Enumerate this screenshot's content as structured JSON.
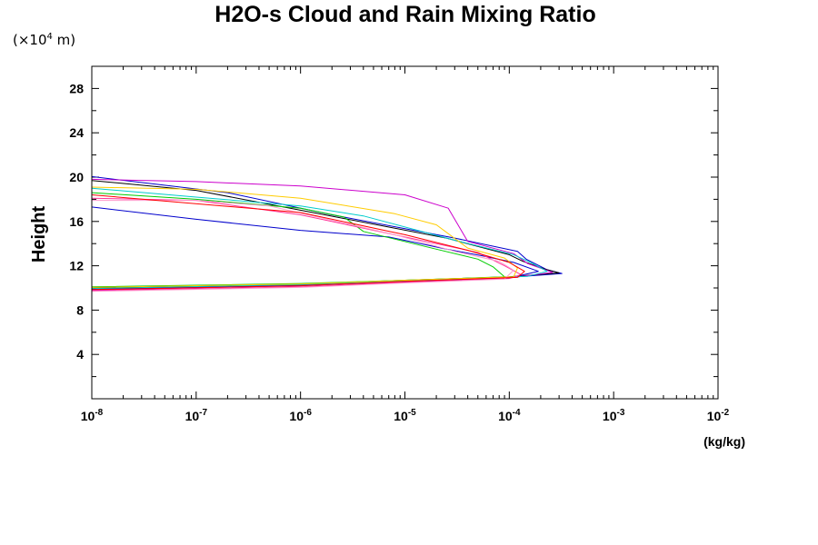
{
  "chart_data": {
    "type": "line",
    "title": "H2O-s Cloud and Rain Mixing Ratio",
    "ylabel": "Height",
    "yscale_note": {
      "prefix": "(×10",
      "exp": "4",
      "suffix": " m)"
    },
    "xunit": "(kg/kg)",
    "xscale": "log",
    "xlim": [
      1e-08,
      0.01
    ],
    "ylim": [
      0,
      30
    ],
    "x_ticks": [
      {
        "value": 1e-08,
        "base": "10",
        "exp": "-8"
      },
      {
        "value": 1e-07,
        "base": "10",
        "exp": "-7"
      },
      {
        "value": 1e-06,
        "base": "10",
        "exp": "-6"
      },
      {
        "value": 1e-05,
        "base": "10",
        "exp": "-5"
      },
      {
        "value": 0.0001,
        "base": "10",
        "exp": "-4"
      },
      {
        "value": 0.001,
        "base": "10",
        "exp": "-3"
      },
      {
        "value": 0.01,
        "base": "10",
        "exp": "-2"
      }
    ],
    "y_ticks": [
      {
        "value": 4,
        "label": "4"
      },
      {
        "value": 8,
        "label": "8"
      },
      {
        "value": 12,
        "label": "12"
      },
      {
        "value": 16,
        "label": "16"
      },
      {
        "value": 20,
        "label": "20"
      },
      {
        "value": 24,
        "label": "24"
      },
      {
        "value": 28,
        "label": "28"
      }
    ],
    "grid": false,
    "legend": "none",
    "series": [
      {
        "color": "#0000cc",
        "points": [
          [
            1e-08,
            9.9
          ],
          [
            1e-07,
            10.05
          ],
          [
            1e-06,
            10.3
          ],
          [
            1e-05,
            10.65
          ],
          [
            0.0001,
            10.95
          ],
          [
            0.00032,
            11.3
          ],
          [
            0.00023,
            11.65
          ],
          [
            0.000145,
            12.6
          ],
          [
            0.00012,
            13.3
          ],
          [
            3e-05,
            14.5
          ],
          [
            2e-06,
            16.6
          ],
          [
            2e-07,
            18.6
          ],
          [
            1e-08,
            20.05
          ]
        ]
      },
      {
        "color": "#000000",
        "points": [
          [
            1e-08,
            10.0
          ],
          [
            1e-06,
            10.35
          ],
          [
            1e-05,
            10.7
          ],
          [
            0.0001,
            11.0
          ],
          [
            0.0003,
            11.35
          ],
          [
            0.00022,
            11.7
          ],
          [
            0.000135,
            12.4
          ],
          [
            0.0001,
            13.0
          ],
          [
            2.5e-05,
            14.5
          ],
          [
            1.5e-06,
            16.7
          ],
          [
            1e-07,
            18.8
          ],
          [
            1e-08,
            19.7
          ]
        ]
      },
      {
        "color": "#cc00cc",
        "points": [
          [
            1e-08,
            9.8
          ],
          [
            1e-06,
            10.2
          ],
          [
            1e-05,
            10.55
          ],
          [
            0.0001,
            10.9
          ],
          [
            0.00026,
            11.4
          ],
          [
            0.00015,
            12.2
          ],
          [
            0.00011,
            13.1
          ],
          [
            4e-05,
            14.2
          ],
          [
            2.6e-05,
            17.2
          ],
          [
            1e-05,
            18.4
          ],
          [
            1e-06,
            19.2
          ],
          [
            1e-07,
            19.6
          ],
          [
            1e-08,
            19.8
          ]
        ]
      },
      {
        "color": "#0000cc",
        "points": [
          [
            1e-08,
            9.9
          ],
          [
            1e-06,
            10.25
          ],
          [
            1e-05,
            10.6
          ],
          [
            0.0001,
            10.9
          ],
          [
            0.00019,
            11.5
          ],
          [
            0.00011,
            12.3
          ],
          [
            5.5e-05,
            12.9
          ],
          [
            2.5e-05,
            13.5
          ],
          [
            7e-06,
            14.6
          ],
          [
            1e-06,
            15.2
          ],
          [
            1e-07,
            16.2
          ],
          [
            1e-08,
            17.3
          ]
        ]
      },
      {
        "color": "#00cc00",
        "points": [
          [
            1e-08,
            10.1
          ],
          [
            1e-06,
            10.4
          ],
          [
            1e-05,
            10.7
          ],
          [
            9e-05,
            11.0
          ],
          [
            7e-05,
            11.9
          ],
          [
            5e-05,
            12.6
          ],
          [
            2e-05,
            13.5
          ],
          [
            4e-06,
            15.1
          ],
          [
            2.6e-06,
            16.4
          ],
          [
            1e-06,
            17.2
          ],
          [
            1e-07,
            18.0
          ],
          [
            1e-08,
            18.6
          ]
        ]
      },
      {
        "color": "#00cccc",
        "points": [
          [
            1e-08,
            9.95
          ],
          [
            1e-06,
            10.3
          ],
          [
            1e-05,
            10.65
          ],
          [
            0.00015,
            11.05
          ],
          [
            0.00023,
            11.5
          ],
          [
            0.00016,
            12.3
          ],
          [
            0.00011,
            13.0
          ],
          [
            3e-05,
            14.3
          ],
          [
            4e-06,
            16.5
          ],
          [
            1e-06,
            17.4
          ],
          [
            1e-07,
            18.2
          ],
          [
            1e-08,
            19.0
          ]
        ]
      },
      {
        "color": "#ff3399",
        "points": [
          [
            1e-08,
            9.75
          ],
          [
            1e-06,
            10.1
          ],
          [
            1e-05,
            10.5
          ],
          [
            0.0001,
            10.85
          ],
          [
            0.00013,
            11.2
          ],
          [
            9e-05,
            12.0
          ],
          [
            5e-05,
            13.2
          ],
          [
            1e-05,
            14.6
          ],
          [
            1e-06,
            16.6
          ],
          [
            1e-07,
            17.9
          ],
          [
            1e-08,
            18.1
          ]
        ]
      },
      {
        "color": "#ffcc00",
        "points": [
          [
            1e-08,
            10.05
          ],
          [
            1e-06,
            10.35
          ],
          [
            1e-05,
            10.7
          ],
          [
            0.00011,
            11.0
          ],
          [
            0.00012,
            11.8
          ],
          [
            9e-05,
            12.7
          ],
          [
            4e-05,
            13.6
          ],
          [
            2e-05,
            15.7
          ],
          [
            8e-06,
            16.7
          ],
          [
            1e-06,
            18.1
          ],
          [
            1e-07,
            18.9
          ],
          [
            1e-08,
            19.1
          ]
        ]
      },
      {
        "color": "#ff99cc",
        "points": [
          [
            1e-08,
            9.7
          ],
          [
            1e-06,
            10.05
          ],
          [
            1e-05,
            10.45
          ],
          [
            9e-05,
            10.8
          ],
          [
            0.00011,
            11.6
          ],
          [
            8e-05,
            12.4
          ],
          [
            3e-05,
            13.3
          ],
          [
            8e-06,
            14.8
          ],
          [
            5e-07,
            17.4
          ],
          [
            1e-07,
            17.9
          ],
          [
            1e-08,
            17.9
          ]
        ]
      },
      {
        "color": "#ff0000",
        "points": [
          [
            1e-08,
            9.85
          ],
          [
            1e-06,
            10.2
          ],
          [
            1e-05,
            10.6
          ],
          [
            0.00012,
            10.95
          ],
          [
            0.00014,
            11.5
          ],
          [
            0.0001,
            12.3
          ],
          [
            4e-05,
            13.4
          ],
          [
            1e-05,
            14.8
          ],
          [
            1e-06,
            16.8
          ],
          [
            1e-08,
            18.4
          ]
        ]
      }
    ]
  }
}
